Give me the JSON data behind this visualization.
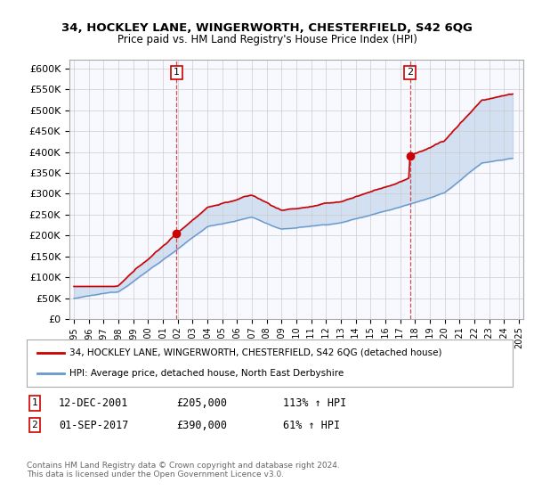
{
  "title1": "34, HOCKLEY LANE, WINGERWORTH, CHESTERFIELD, S42 6QG",
  "title2": "Price paid vs. HM Land Registry's House Price Index (HPI)",
  "legend_line1": "34, HOCKLEY LANE, WINGERWORTH, CHESTERFIELD, S42 6QG (detached house)",
  "legend_line2": "HPI: Average price, detached house, North East Derbyshire",
  "annotation1_date": "12-DEC-2001",
  "annotation1_price": "£205,000",
  "annotation1_hpi": "113% ↑ HPI",
  "annotation1_year": 2001.92,
  "annotation1_value": 205000,
  "annotation2_date": "01-SEP-2017",
  "annotation2_price": "£390,000",
  "annotation2_hpi": "61% ↑ HPI",
  "annotation2_year": 2017.67,
  "annotation2_value": 390000,
  "footer": "Contains HM Land Registry data © Crown copyright and database right 2024.\nThis data is licensed under the Open Government Licence v3.0.",
  "red_color": "#cc0000",
  "blue_color": "#6699cc",
  "fill_color": "#ddeeff",
  "ylim": [
    0,
    620000
  ],
  "xlim": [
    1994.7,
    2025.3
  ]
}
